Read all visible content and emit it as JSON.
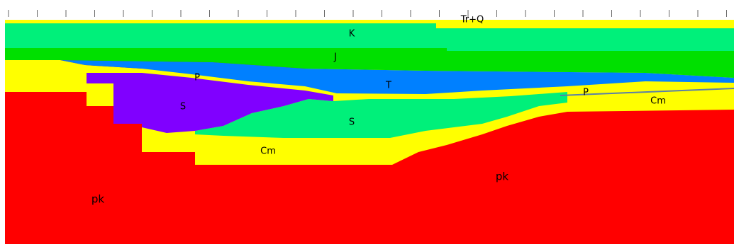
{
  "section": {
    "units": [
      "Tr+Q",
      "K",
      "J",
      "T",
      "P",
      "S",
      "S",
      "Cm",
      "P",
      "Cm",
      "pk",
      "pk"
    ]
  }
}
